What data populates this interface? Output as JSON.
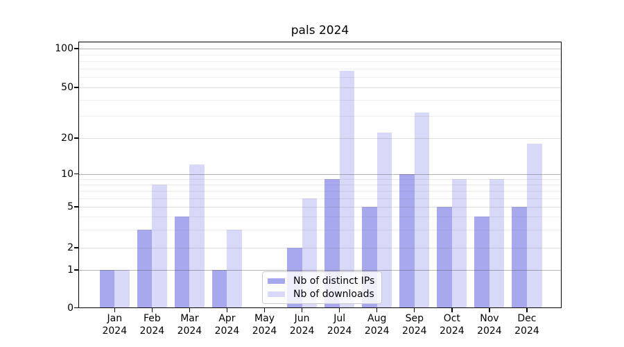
{
  "chart_data": {
    "type": "bar",
    "title": "pals 2024",
    "categories": [
      "Jan 2024",
      "Feb 2024",
      "Mar 2024",
      "Apr 2024",
      "May 2024",
      "Jun 2024",
      "Jul 2024",
      "Aug 2024",
      "Sep 2024",
      "Oct 2024",
      "Nov 2024",
      "Dec 2024"
    ],
    "series": [
      {
        "name": "Nb of distinct IPs",
        "color": "#a8a8ee",
        "values": [
          1,
          3,
          4,
          1,
          0,
          2,
          9,
          5,
          10,
          5,
          4,
          5
        ]
      },
      {
        "name": "Nb of downloads",
        "color": "#d8d8f8",
        "values": [
          1,
          8,
          12,
          3,
          0,
          6,
          67,
          22,
          32,
          9,
          9,
          18
        ]
      }
    ],
    "xlabel": "",
    "ylabel": "",
    "y_axis": {
      "scale": "symlog-like",
      "tick_labels": [
        "0",
        "1",
        "2",
        "5",
        "10",
        "20",
        "50",
        "100"
      ],
      "range": [
        0,
        110
      ]
    },
    "x_axis": {
      "tick_label_second_line": "2024"
    },
    "legend_position": "lower center",
    "grid": "horizontal major + minor"
  }
}
